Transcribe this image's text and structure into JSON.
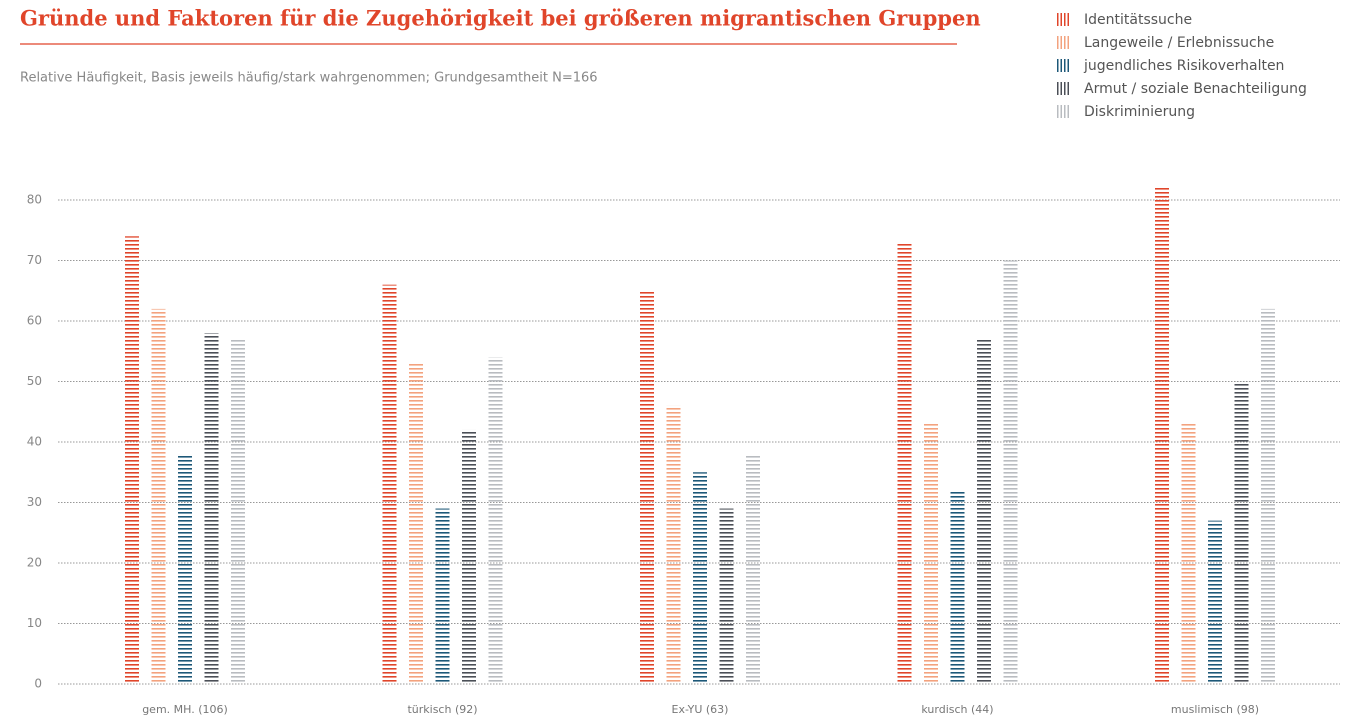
{
  "chart_data": {
    "type": "bar",
    "title": "Gründe und Faktoren für die Zugehörigkeit bei größeren migrantischen Gruppen",
    "subtitle": "Relative Häufigkeit, Basis jeweils häufig/stark wahrgenommen; Grundgesamtheit N=166",
    "categories": [
      "gem. MH. (106)",
      "türkisch (92)",
      "Ex-YU (63)",
      "kurdisch (44)",
      "muslimisch (98)"
    ],
    "series": [
      {
        "name": "Identitätssuche",
        "color": "#e0452a",
        "values": [
          74,
          66,
          65,
          73,
          82
        ]
      },
      {
        "name": "Langeweile / Erlebnissuche",
        "color": "#f3a27e",
        "values": [
          62,
          53,
          46,
          43,
          43
        ]
      },
      {
        "name": "jugendliches Risikoverhalten",
        "color": "#1d5878",
        "values": [
          38,
          29,
          35,
          32,
          27
        ]
      },
      {
        "name": "Armut / soziale Benachteiligung",
        "color": "#4b4f57",
        "values": [
          58,
          42,
          29,
          57,
          50
        ]
      },
      {
        "name": "Diskriminierung",
        "color": "#b9bcc0",
        "values": [
          57,
          54,
          38,
          70,
          62
        ]
      }
    ],
    "ylim": [
      0,
      85
    ],
    "yticks": [
      0,
      10,
      20,
      30,
      40,
      50,
      60,
      70,
      80
    ],
    "grid": true
  }
}
